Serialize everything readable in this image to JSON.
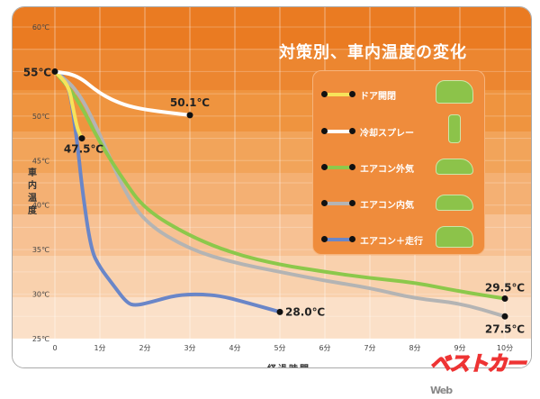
{
  "chart_data": {
    "type": "line",
    "title": "対策別、車内温度の変化",
    "xlabel": "経過時間",
    "ylabel": "車内温度",
    "xlim": [
      0,
      10
    ],
    "ylim": [
      25,
      60
    ],
    "x_ticks": [
      "0",
      "1分",
      "2分",
      "3分",
      "4分",
      "5分",
      "6分",
      "7分",
      "8分",
      "9分",
      "10分"
    ],
    "y_ticks": [
      {
        "v": 25,
        "label": "25℃"
      },
      {
        "v": 30,
        "label": "30℃"
      },
      {
        "v": 35,
        "label": "35℃"
      },
      {
        "v": 40,
        "label": "40℃"
      },
      {
        "v": 45,
        "label": "45℃"
      },
      {
        "v": 50,
        "label": "50℃"
      },
      {
        "v": 55,
        "label": "55℃"
      },
      {
        "v": 60,
        "label": "60℃"
      }
    ],
    "grid": true,
    "legend_position": "right",
    "start_label": "55℃",
    "series": [
      {
        "name": "ドア開閉",
        "color": "#f7e35a",
        "end_label": "47.5℃",
        "points": [
          [
            0,
            55
          ],
          [
            0.3,
            53.5
          ],
          [
            0.4,
            51
          ],
          [
            0.5,
            48.5
          ],
          [
            0.6,
            47.5
          ]
        ]
      },
      {
        "name": "冷却スプレー",
        "color": "#ffffff",
        "end_label": "50.1℃",
        "points": [
          [
            0,
            55
          ],
          [
            0.5,
            54.6
          ],
          [
            1,
            52.5
          ],
          [
            1.5,
            51.3
          ],
          [
            2,
            50.7
          ],
          [
            3,
            50.1
          ]
        ]
      },
      {
        "name": "エアコン外気",
        "color": "#8cc84b",
        "end_label": "29.5℃",
        "points": [
          [
            0,
            55
          ],
          [
            0.5,
            52
          ],
          [
            1,
            47
          ],
          [
            1.5,
            43
          ],
          [
            2,
            39.5
          ],
          [
            3,
            36.5
          ],
          [
            4,
            34.5
          ],
          [
            5,
            33.3
          ],
          [
            6,
            32.5
          ],
          [
            7,
            31.8
          ],
          [
            8,
            31.3
          ],
          [
            9,
            30.3
          ],
          [
            10,
            29.5
          ]
        ]
      },
      {
        "name": "エアコン内気",
        "color": "#b4b4b4",
        "end_label": "27.5℃",
        "points": [
          [
            0,
            55
          ],
          [
            0.5,
            53
          ],
          [
            1,
            48
          ],
          [
            1.5,
            42
          ],
          [
            2,
            38
          ],
          [
            3,
            35
          ],
          [
            4,
            33.5
          ],
          [
            5,
            32.5
          ],
          [
            6,
            31.5
          ],
          [
            7,
            30.7
          ],
          [
            8,
            29.5
          ],
          [
            9,
            29
          ],
          [
            10,
            27.5
          ]
        ]
      },
      {
        "name": "エアコン＋走行",
        "color": "#6a86c8",
        "end_label": "28.0℃",
        "points": [
          [
            0,
            55
          ],
          [
            0.3,
            54
          ],
          [
            0.5,
            47
          ],
          [
            0.6,
            42
          ],
          [
            0.8,
            35
          ],
          [
            1,
            33
          ],
          [
            1.3,
            31
          ],
          [
            1.6,
            29
          ],
          [
            1.8,
            28.7
          ],
          [
            2.2,
            29.2
          ],
          [
            2.7,
            29.9
          ],
          [
            3.2,
            30
          ],
          [
            3.7,
            29.8
          ],
          [
            4.3,
            29
          ],
          [
            5,
            28
          ]
        ]
      }
    ]
  },
  "watermark": "ベストカーWeb"
}
